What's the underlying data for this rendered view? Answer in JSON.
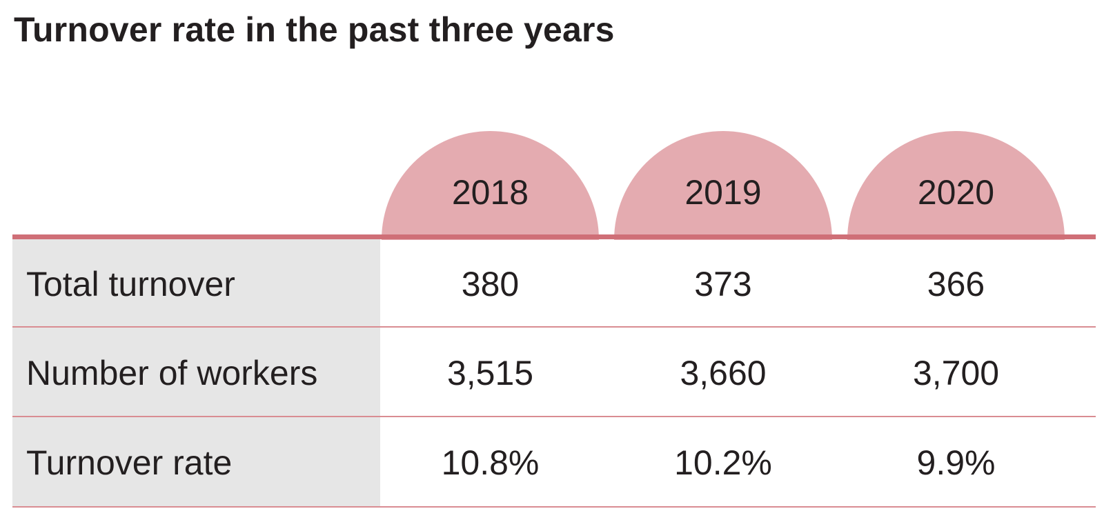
{
  "title": "Turnover rate in the past three years",
  "colors": {
    "header_fill": "#e4abb0",
    "rule": "#cf6f77",
    "label_panel": "#e6e6e6",
    "text": "#231f20"
  },
  "chart_data": {
    "type": "table",
    "title": "Turnover rate in the past three years",
    "columns": [
      "2018",
      "2019",
      "2020"
    ],
    "rows": [
      {
        "label": "Total turnover",
        "values": [
          "380",
          "373",
          "366"
        ]
      },
      {
        "label": "Number of workers",
        "values": [
          "3,515",
          "3,660",
          "3,700"
        ]
      },
      {
        "label": "Turnover rate",
        "values": [
          "10.8%",
          "10.2%",
          "9.9%"
        ]
      }
    ]
  }
}
